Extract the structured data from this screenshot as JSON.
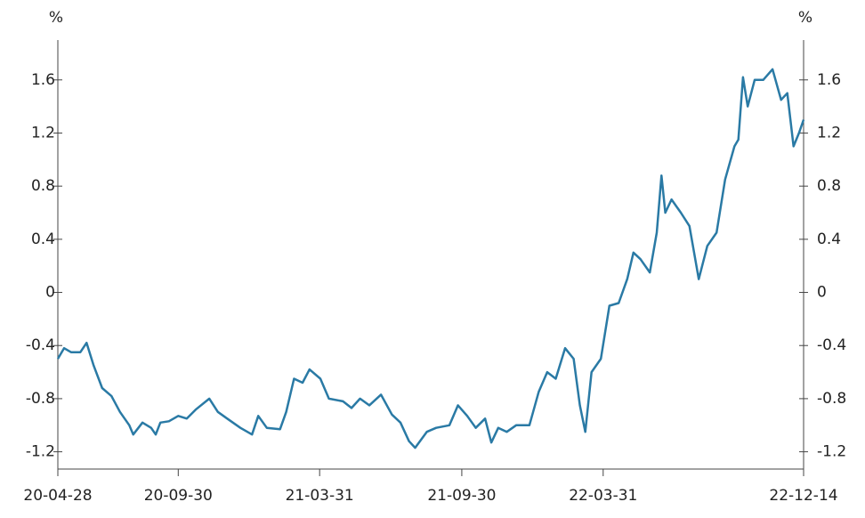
{
  "chart_data": {
    "type": "line",
    "y_label": "%",
    "y2_label": "%",
    "x": [
      "20-04-28",
      "20-05-06",
      "20-05-15",
      "20-05-27",
      "20-06-04",
      "20-06-13",
      "20-06-24",
      "20-07-06",
      "20-07-17",
      "20-07-29",
      "20-08-03",
      "20-08-15",
      "20-08-26",
      "20-09-01",
      "20-09-07",
      "20-09-18",
      "20-09-30",
      "20-10-11",
      "20-10-23",
      "20-11-09",
      "20-11-20",
      "20-12-02",
      "20-12-19",
      "21-01-03",
      "21-01-11",
      "21-01-22",
      "21-02-08",
      "21-02-16",
      "21-02-26",
      "21-03-09",
      "21-03-18",
      "21-04-01",
      "21-04-12",
      "21-04-30",
      "21-05-11",
      "21-05-22",
      "21-06-03",
      "21-06-18",
      "21-07-02",
      "21-07-13",
      "21-07-24",
      "21-08-01",
      "21-08-16",
      "21-08-28",
      "21-09-14",
      "21-09-25",
      "21-10-07",
      "21-10-18",
      "21-10-30",
      "21-11-07",
      "21-11-16",
      "21-11-27",
      "21-12-09",
      "21-12-26",
      "22-01-07",
      "22-01-18",
      "22-01-29",
      "22-02-10",
      "22-02-21",
      "22-03-01",
      "22-03-08",
      "22-03-16",
      "22-03-28",
      "22-04-08",
      "22-04-20",
      "22-05-01",
      "22-05-09",
      "22-05-18",
      "22-05-30",
      "22-06-08",
      "22-06-14",
      "22-06-19",
      "22-06-27",
      "22-07-09",
      "22-07-20",
      "22-08-01",
      "22-08-12",
      "22-08-24",
      "22-09-04",
      "22-09-16",
      "22-09-21",
      "22-09-27",
      "22-10-03",
      "22-10-12",
      "22-10-23",
      "22-11-04",
      "22-11-15",
      "22-11-23",
      "22-12-01",
      "22-12-08",
      "22-12-14"
    ],
    "series": [
      {
        "color": "#2a7aa5",
        "values": [
          -0.5,
          -0.42,
          -0.45,
          -0.45,
          -0.38,
          -0.55,
          -0.72,
          -0.78,
          -0.9,
          -1.0,
          -1.07,
          -0.98,
          -1.02,
          -1.07,
          -0.98,
          -0.97,
          -0.93,
          -0.95,
          -0.88,
          -0.8,
          -0.9,
          -0.95,
          -1.02,
          -1.07,
          -0.93,
          -1.02,
          -1.03,
          -0.9,
          -0.65,
          -0.68,
          -0.58,
          -0.65,
          -0.8,
          -0.82,
          -0.87,
          -0.8,
          -0.85,
          -0.77,
          -0.92,
          -0.98,
          -1.12,
          -1.17,
          -1.05,
          -1.02,
          -1.0,
          -0.85,
          -0.93,
          -1.02,
          -0.95,
          -1.13,
          -1.02,
          -1.05,
          -1.0,
          -1.0,
          -0.75,
          -0.6,
          -0.65,
          -0.42,
          -0.5,
          -0.85,
          -1.05,
          -0.6,
          -0.5,
          -0.1,
          -0.08,
          0.1,
          0.3,
          0.25,
          0.15,
          0.45,
          0.88,
          0.6,
          0.7,
          0.6,
          0.5,
          0.1,
          0.35,
          0.45,
          0.85,
          1.1,
          1.15,
          1.62,
          1.4,
          1.6,
          1.6,
          1.68,
          1.45,
          1.5,
          1.1,
          1.2,
          1.3
        ]
      }
    ],
    "xlim": [
      "20-04-28",
      "22-12-14"
    ],
    "xticks": [
      "20-04-28",
      "20-09-30",
      "21-03-31",
      "21-09-30",
      "22-03-31",
      "22-12-14"
    ],
    "ylim": [
      -1.33,
      1.9
    ],
    "yticks": [
      -1.2,
      -0.8,
      -0.4,
      0,
      0.4,
      0.8,
      1.2,
      1.6
    ],
    "y2lim": [
      -1.33,
      1.9
    ],
    "y2ticks": [
      -1.2,
      -0.8,
      -0.4,
      0,
      0.4,
      0.8,
      1.2,
      1.6
    ]
  }
}
